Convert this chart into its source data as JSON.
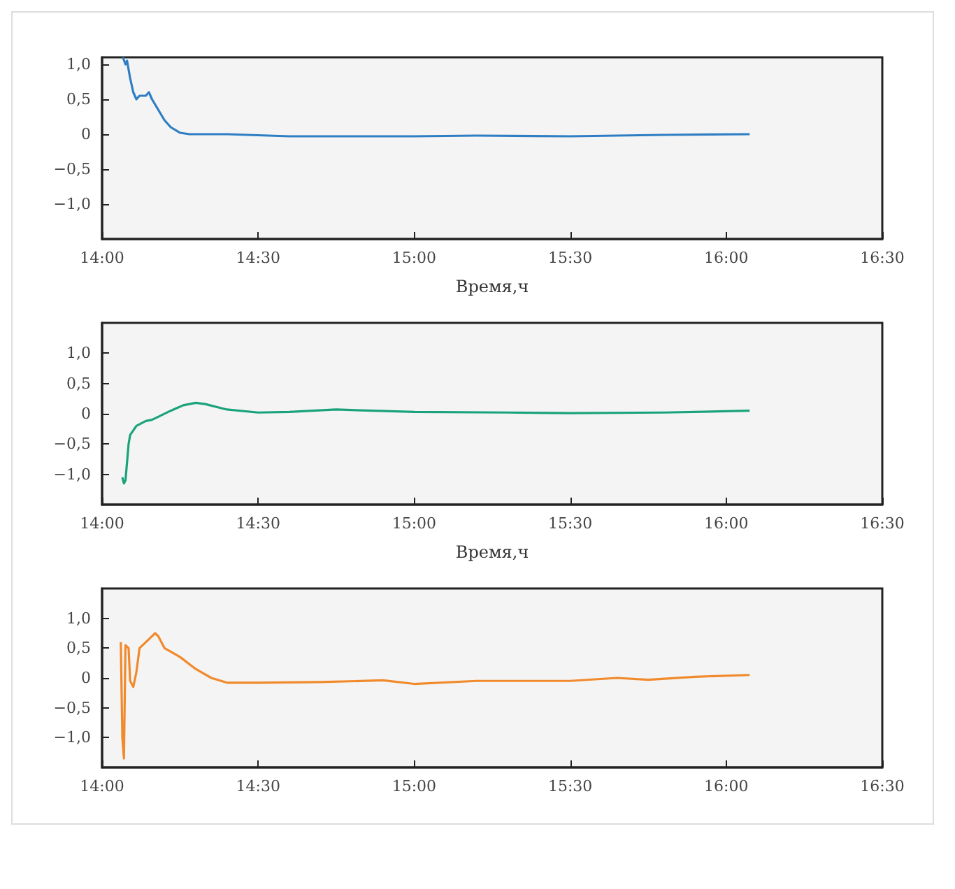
{
  "chart_data": [
    {
      "type": "line",
      "xlabel": "Время,ч",
      "xlim": [
        14,
        16.5
      ],
      "ylim": [
        -1.5,
        1.1
      ],
      "grid": false,
      "marker": "none",
      "line_style": "solid",
      "xticks": [
        {
          "value": 14,
          "label": "14:00"
        },
        {
          "value": 14.5,
          "label": "14:30"
        },
        {
          "value": 15,
          "label": "15:00"
        },
        {
          "value": 15.5,
          "label": "15:30"
        },
        {
          "value": 16,
          "label": "16:00"
        },
        {
          "value": 16.5,
          "label": "16:30"
        }
      ],
      "yticks": [
        {
          "value": -1,
          "label": "−1,0"
        },
        {
          "value": -0.5,
          "label": "−0,5"
        },
        {
          "value": 0,
          "label": "0"
        },
        {
          "value": 0.5,
          "label": "0,5"
        },
        {
          "value": 1,
          "label": "1,0"
        }
      ],
      "series": [
        {
          "color": "#2f7ec4",
          "x": [
            14.067,
            14.075,
            14.08,
            14.09,
            14.1,
            14.11,
            14.12,
            14.14,
            14.15,
            14.16,
            14.18,
            14.2,
            14.22,
            14.25,
            14.28,
            14.4,
            14.6,
            14.8,
            15,
            15.2,
            15.5,
            15.8,
            16.075
          ],
          "values": [
            1.1,
            1.0,
            1.05,
            0.8,
            0.6,
            0.5,
            0.55,
            0.55,
            0.6,
            0.5,
            0.35,
            0.2,
            0.1,
            0.02,
            0,
            0,
            -0.03,
            -0.03,
            -0.03,
            -0.02,
            -0.03,
            -0.01,
            0
          ]
        }
      ]
    },
    {
      "type": "line",
      "xlabel": "Время,ч",
      "xlim": [
        14,
        16.5
      ],
      "ylim": [
        -1.5,
        1.5
      ],
      "grid": false,
      "marker": "none",
      "line_style": "solid",
      "xticks": [
        {
          "value": 14,
          "label": "14:00"
        },
        {
          "value": 14.5,
          "label": "14:30"
        },
        {
          "value": 15,
          "label": "15:00"
        },
        {
          "value": 15.5,
          "label": "15:30"
        },
        {
          "value": 16,
          "label": "16:00"
        },
        {
          "value": 16.5,
          "label": "16:30"
        }
      ],
      "yticks": [
        {
          "value": -1,
          "label": "−1,0"
        },
        {
          "value": -0.5,
          "label": "−0,5"
        },
        {
          "value": 0,
          "label": "0"
        },
        {
          "value": 0.5,
          "label": "0,5"
        },
        {
          "value": 1,
          "label": "1,0"
        }
      ],
      "series": [
        {
          "color": "#1aa37a",
          "x": [
            14.065,
            14.07,
            14.075,
            14.085,
            14.09,
            14.11,
            14.14,
            14.16,
            14.18,
            14.22,
            14.26,
            14.3,
            14.33,
            14.4,
            14.5,
            14.6,
            14.75,
            15,
            15.3,
            15.5,
            15.8,
            16.075
          ],
          "values": [
            -1.05,
            -1.15,
            -1.1,
            -0.5,
            -0.35,
            -0.2,
            -0.12,
            -0.1,
            -0.05,
            0.05,
            0.14,
            0.18,
            0.16,
            0.07,
            0.02,
            0.03,
            0.07,
            0.03,
            0.02,
            0.01,
            0.02,
            0.05
          ]
        }
      ]
    },
    {
      "type": "line",
      "xlim": [
        14,
        16.5
      ],
      "ylim": [
        -1.5,
        1.5
      ],
      "grid": false,
      "marker": "none",
      "line_style": "solid",
      "xticks": [
        {
          "value": 14,
          "label": "14:00"
        },
        {
          "value": 14.5,
          "label": "14:30"
        },
        {
          "value": 15,
          "label": "15:00"
        },
        {
          "value": 15.5,
          "label": "15:30"
        },
        {
          "value": 16,
          "label": "16:00"
        },
        {
          "value": 16.5,
          "label": "16:30"
        }
      ],
      "yticks": [
        {
          "value": -1,
          "label": "−1,0"
        },
        {
          "value": -0.5,
          "label": "−0,5"
        },
        {
          "value": 0,
          "label": "0"
        },
        {
          "value": 0.5,
          "label": "0,5"
        },
        {
          "value": 1,
          "label": "1,0"
        }
      ],
      "series": [
        {
          "color": "#f08a2c",
          "x": [
            14.06,
            14.065,
            14.07,
            14.075,
            14.085,
            14.09,
            14.1,
            14.11,
            14.12,
            14.13,
            14.15,
            14.17,
            14.18,
            14.2,
            14.25,
            14.3,
            14.35,
            14.4,
            14.5,
            14.7,
            14.9,
            15,
            15.2,
            15.4,
            15.5,
            15.65,
            15.75,
            15.9,
            16.075
          ],
          "values": [
            0.6,
            -1.0,
            -1.35,
            0.55,
            0.5,
            -0.05,
            -0.15,
            0.1,
            0.5,
            0.55,
            0.65,
            0.75,
            0.7,
            0.5,
            0.35,
            0.15,
            0,
            -0.08,
            -0.08,
            -0.07,
            -0.04,
            -0.1,
            -0.05,
            -0.05,
            -0.05,
            0,
            -0.03,
            0.02,
            0.05
          ]
        }
      ]
    }
  ]
}
